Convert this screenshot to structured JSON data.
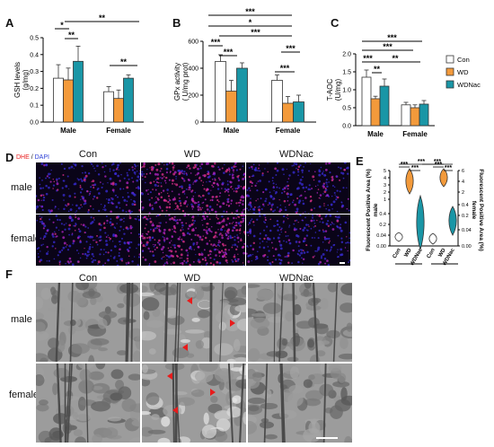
{
  "panels": {
    "A": "A",
    "B": "B",
    "C": "C",
    "D": "D",
    "E": "E",
    "F": "F"
  },
  "legend": {
    "items": [
      {
        "label": "Con",
        "color": "#ffffff"
      },
      {
        "label": "WD",
        "color": "#f39a3b"
      },
      {
        "label": "WDNac",
        "color": "#1a96a6"
      }
    ]
  },
  "colors": {
    "con": "#ffffff",
    "wd": "#f39a3b",
    "wdnac": "#1a96a6",
    "red": "#e81b1b"
  },
  "chart_data": [
    {
      "panel": "A",
      "type": "bar",
      "ylabel": "GSH levels\n(g/mg)",
      "ylim": [
        0,
        0.5
      ],
      "yticks": [
        "0.0",
        "0.1",
        "0.2",
        "0.3",
        "0.4",
        "0.5"
      ],
      "categories": [
        "Male",
        "Female"
      ],
      "series": [
        {
          "name": "Con",
          "values": [
            0.26,
            0.18
          ],
          "err": [
            0.08,
            0.03
          ]
        },
        {
          "name": "WD",
          "values": [
            0.25,
            0.14
          ],
          "err": [
            0.07,
            0.05
          ]
        },
        {
          "name": "WDNac",
          "values": [
            0.36,
            0.26
          ],
          "err": [
            0.09,
            0.02
          ]
        }
      ],
      "significance": [
        "*",
        "**",
        "**",
        "**"
      ]
    },
    {
      "panel": "B",
      "type": "bar",
      "ylabel": "GPx activity\n( U/mg prot)",
      "ylim": [
        0,
        600
      ],
      "yticks": [
        "0",
        "200",
        "400",
        "600"
      ],
      "categories": [
        "Male",
        "Female"
      ],
      "series": [
        {
          "name": "Con",
          "values": [
            450,
            310
          ],
          "err": [
            50,
            40
          ]
        },
        {
          "name": "WD",
          "values": [
            230,
            140
          ],
          "err": [
            80,
            50
          ]
        },
        {
          "name": "WDNac",
          "values": [
            400,
            150
          ],
          "err": [
            40,
            50
          ]
        }
      ],
      "significance": [
        "***",
        "***",
        "***",
        "*",
        "***",
        "***",
        "***"
      ]
    },
    {
      "panel": "C",
      "type": "bar",
      "ylabel": "T-AOC\n(U/mg)",
      "ylim": [
        0,
        2.0
      ],
      "yticks": [
        "0.0",
        "0.5",
        "1.0",
        "1.5",
        "2.0"
      ],
      "categories": [
        "Male",
        "Female"
      ],
      "series": [
        {
          "name": "Con",
          "values": [
            1.35,
            0.58
          ],
          "err": [
            0.2,
            0.07
          ]
        },
        {
          "name": "WD",
          "values": [
            0.75,
            0.5
          ],
          "err": [
            0.07,
            0.08
          ]
        },
        {
          "name": "WDNac",
          "values": [
            1.1,
            0.6
          ],
          "err": [
            0.2,
            0.1
          ]
        }
      ],
      "significance": [
        "***",
        "**",
        "***",
        "***",
        "**"
      ]
    },
    {
      "panel": "E",
      "type": "violin",
      "ylabel_left": "Fluorescent Positive Area (%)\nmale",
      "ylabel_right": "Fluorescent Positive Area (%)\nfemale",
      "yticks": [
        "0.00",
        "0.04",
        "0.2",
        "0.4",
        "1",
        "2",
        "3",
        "4",
        "5"
      ],
      "right_ticks": [
        "6",
        "4",
        "2",
        "0.4",
        "0.2",
        "0.04",
        "0.00"
      ],
      "groups": [
        "Male",
        "Female"
      ],
      "categories": [
        "Con",
        "WD",
        "WDNac",
        "Con",
        "WD",
        "WDNac"
      ],
      "values": [
        0.02,
        3.8,
        0.2,
        0.03,
        4.4,
        0.28
      ],
      "significance": [
        "***",
        "***",
        "***",
        "***",
        "***",
        "***"
      ]
    }
  ],
  "D": {
    "legend_dhe": "DHE",
    "legend_sep": " / ",
    "legend_dapi": "DAPI",
    "columns": [
      "Con",
      "WD",
      "WDNac"
    ],
    "rows": [
      "male",
      "female"
    ]
  },
  "F": {
    "columns": [
      "Con",
      "WD",
      "WDNac"
    ],
    "rows": [
      "male",
      "female"
    ]
  }
}
